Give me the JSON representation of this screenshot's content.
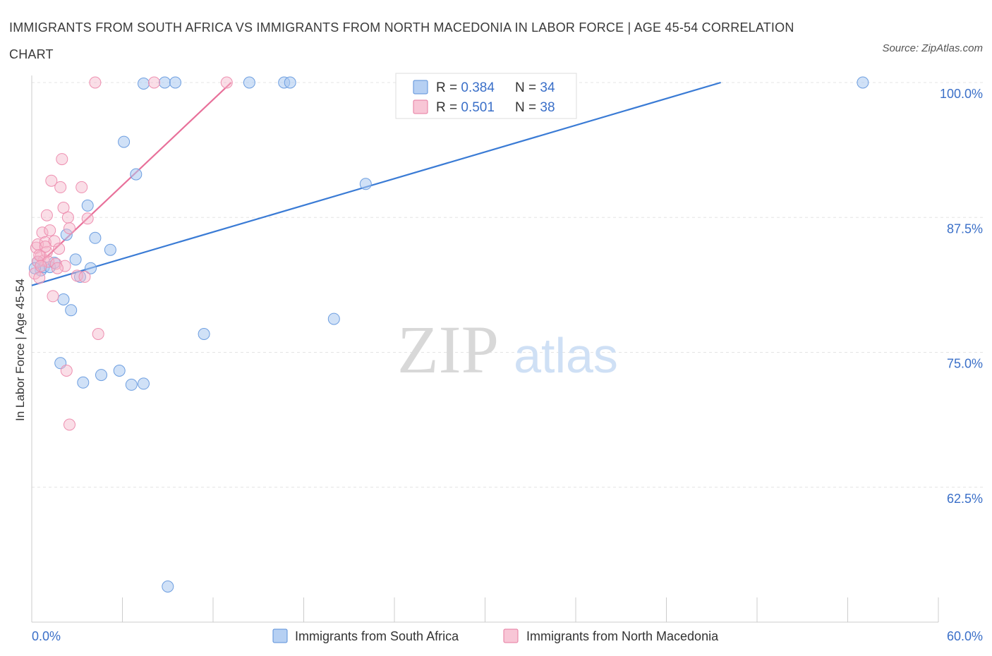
{
  "title": "IMMIGRANTS FROM SOUTH AFRICA VS IMMIGRANTS FROM NORTH MACEDONIA IN LABOR FORCE | AGE 45-54 CORRELATION CHART",
  "source": "Source: ZipAtlas.com",
  "watermark": {
    "zip": "ZIP",
    "atlas": "atlas"
  },
  "colors": {
    "blue": "#3a7bd5",
    "blue_fill": "#a9c8f0",
    "pink": "#e8709a",
    "pink_fill": "#f4b6ca",
    "axis_text": "#3a6fc8"
  },
  "chart_data": {
    "type": "scatter",
    "xlabel": "",
    "ylabel": "In Labor Force | Age 45-54",
    "xlim": [
      0,
      60
    ],
    "ylim": [
      50,
      100
    ],
    "x_tick_labels": [
      "0.0%",
      "60.0%"
    ],
    "y_ticks": [
      62.5,
      75.0,
      87.5,
      100.0
    ],
    "y_tick_labels": [
      "62.5%",
      "75.0%",
      "87.5%",
      "100.0%"
    ],
    "legend": [
      {
        "r_label": "R = ",
        "r_value": "0.384",
        "n_label": "N = ",
        "n_value": "34"
      },
      {
        "r_label": "R = ",
        "r_value": "0.501",
        "n_label": "N = ",
        "n_value": "38"
      }
    ],
    "series": [
      {
        "name": "Immigrants from South Africa",
        "color": "blue",
        "points": [
          [
            0.4,
            83.4
          ],
          [
            0.6,
            82.6
          ],
          [
            0.8,
            82.9
          ],
          [
            1.2,
            82.9
          ],
          [
            1.5,
            83.3
          ],
          [
            1.9,
            74.0
          ],
          [
            2.1,
            79.9
          ],
          [
            2.3,
            85.9
          ],
          [
            2.6,
            78.9
          ],
          [
            2.9,
            83.6
          ],
          [
            3.2,
            82.0
          ],
          [
            3.7,
            88.6
          ],
          [
            3.9,
            82.8
          ],
          [
            4.2,
            85.6
          ],
          [
            4.6,
            72.9
          ],
          [
            3.4,
            72.2
          ],
          [
            5.2,
            84.5
          ],
          [
            5.8,
            73.3
          ],
          [
            6.1,
            94.5
          ],
          [
            6.6,
            72.0
          ],
          [
            7.4,
            72.1
          ],
          [
            6.9,
            91.5
          ],
          [
            7.4,
            99.9
          ],
          [
            8.8,
            100.0
          ],
          [
            9.5,
            100.0
          ],
          [
            9.0,
            53.3
          ],
          [
            11.4,
            76.7
          ],
          [
            14.4,
            100.0
          ],
          [
            16.7,
            100.0
          ],
          [
            17.1,
            100.0
          ],
          [
            20.0,
            78.1
          ],
          [
            22.1,
            90.6
          ],
          [
            55.0,
            100.0
          ],
          [
            0.2,
            82.8
          ]
        ],
        "trend": [
          [
            0,
            81.2
          ],
          [
            45.6,
            100.0
          ]
        ]
      },
      {
        "name": "Immigrants from North Macedonia",
        "color": "pink",
        "points": [
          [
            0.2,
            82.3
          ],
          [
            0.3,
            84.7
          ],
          [
            0.4,
            85.0
          ],
          [
            0.5,
            81.9
          ],
          [
            0.6,
            83.9
          ],
          [
            0.7,
            86.1
          ],
          [
            0.8,
            83.5
          ],
          [
            0.9,
            85.2
          ],
          [
            1.0,
            84.3
          ],
          [
            1.1,
            83.4
          ],
          [
            1.0,
            87.7
          ],
          [
            1.2,
            86.3
          ],
          [
            1.3,
            90.9
          ],
          [
            1.4,
            80.2
          ],
          [
            1.5,
            85.3
          ],
          [
            1.6,
            83.2
          ],
          [
            1.8,
            84.6
          ],
          [
            1.9,
            90.3
          ],
          [
            2.0,
            92.9
          ],
          [
            2.1,
            88.4
          ],
          [
            2.2,
            83.0
          ],
          [
            2.3,
            73.3
          ],
          [
            2.4,
            87.5
          ],
          [
            2.5,
            68.3
          ],
          [
            3.0,
            82.1
          ],
          [
            3.3,
            90.3
          ],
          [
            3.5,
            82.0
          ],
          [
            3.7,
            87.4
          ],
          [
            4.4,
            76.7
          ],
          [
            4.2,
            100.0
          ],
          [
            8.1,
            100.0
          ],
          [
            12.9,
            100.0
          ],
          [
            0.4,
            83.4
          ],
          [
            0.5,
            84.0
          ],
          [
            0.9,
            84.8
          ],
          [
            1.7,
            82.8
          ],
          [
            2.5,
            86.5
          ],
          [
            0.6,
            83.0
          ]
        ],
        "trend": [
          [
            0.5,
            83.2
          ],
          [
            13.2,
            100.0
          ]
        ]
      }
    ]
  }
}
